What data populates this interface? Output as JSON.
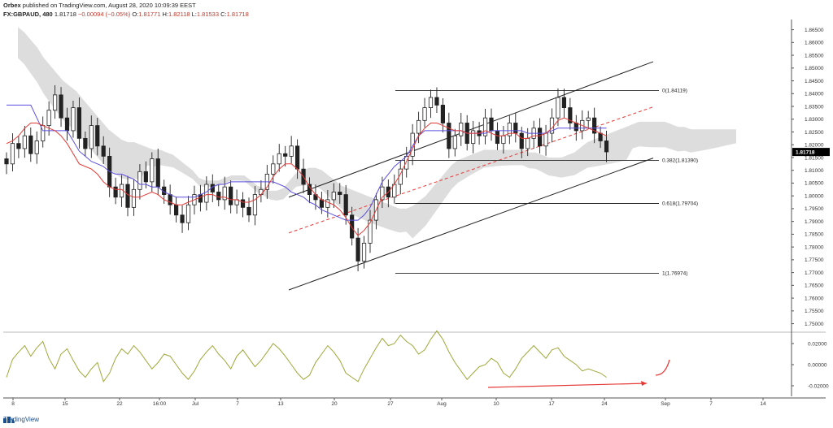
{
  "header": {
    "publisher": "Orbex",
    "published_text": "published on TradingView.com, August 28, 2020 10:09:39 EEST",
    "symbol": "FX:GBPAUD, 480",
    "last": "1.81718",
    "change": "−0.00094 (−0.05%)",
    "open_label": "O:",
    "open": "1.81771",
    "high_label": "H:",
    "high": "1.82118",
    "low_label": "L:",
    "low": "1.81533",
    "close_label": "C:",
    "close": "1.81718"
  },
  "footer": {
    "brand": "TradingView"
  },
  "colors": {
    "up": "#ffffff",
    "down": "#222222",
    "tenkan": "#e53935",
    "kijun": "#5b4fe0",
    "cloud": "#d9d9d9",
    "oscillator": "#9fa83a",
    "annotation": "#e53935",
    "price_tag": "#000000"
  },
  "chart_data": [
    {
      "type": "line",
      "title": "",
      "ylim": [
        1.747,
        1.869
      ],
      "y_ticks": [
        "1.86500",
        "1.86000",
        "1.85500",
        "1.85000",
        "1.84500",
        "1.84000",
        "1.83500",
        "1.83000",
        "1.82500",
        "1.82000",
        "1.81500",
        "1.81000",
        "1.80500",
        "1.80000",
        "1.79500",
        "1.79000",
        "1.78500",
        "1.78000",
        "1.77500",
        "1.77000",
        "1.76500",
        "1.76000",
        "1.75500",
        "1.75000"
      ],
      "x_ticks": [
        "8",
        "15",
        "22",
        "16:00",
        "Jul",
        "7",
        "13",
        "20",
        "27",
        "Aug",
        "10",
        "17",
        "24",
        "Sep",
        "7",
        "14"
      ],
      "last_price_label": "1.81718",
      "fib_levels": [
        {
          "label": "0(1.84119)",
          "value": 1.84119
        },
        {
          "label": "0.382(1.81390)",
          "value": 1.8139
        },
        {
          "label": "0.618(1.79704)",
          "value": 1.79704
        },
        {
          "label": "1(1.76974)",
          "value": 1.76974
        }
      ],
      "channel": {
        "upper": [
          [
            0,
            1.7995
          ],
          [
            100,
            1.8525
          ]
        ],
        "lower": [
          [
            0,
            1.7632
          ],
          [
            100,
            1.8148
          ]
        ],
        "mid": [
          [
            0,
            1.7855
          ],
          [
            100,
            1.8348
          ]
        ]
      },
      "close_series": [
        1.8125,
        1.8205,
        1.8185,
        1.8235,
        1.8165,
        1.8215,
        1.8275,
        1.8335,
        1.8395,
        1.8305,
        1.8255,
        1.8345,
        1.8225,
        1.8185,
        1.8275,
        1.8195,
        1.8155,
        1.8035,
        1.7995,
        1.8045,
        1.7955,
        1.8025,
        1.8095,
        1.8055,
        1.8145,
        1.8035,
        1.8005,
        1.7965,
        1.7925,
        1.7895,
        1.7965,
        1.8005,
        1.7975,
        1.8045,
        1.8015,
        1.7985,
        1.8035,
        1.7965,
        1.7985,
        1.7955,
        1.7925,
        1.8005,
        1.8025,
        1.8085,
        1.8125,
        1.8165,
        1.8155,
        1.8195,
        1.8105,
        1.8045,
        1.8005,
        1.7985,
        1.7955,
        1.7985,
        1.8015,
        1.8005,
        1.7925,
        1.7835,
        1.7745,
        1.7815,
        1.7905,
        1.7985,
        1.8035,
        1.7995,
        1.8045,
        1.8105,
        1.8155,
        1.8245,
        1.8295,
        1.8345,
        1.8385,
        1.8355,
        1.8285,
        1.8185,
        1.8235,
        1.8285,
        1.8205,
        1.8255,
        1.8235,
        1.8305,
        1.8255,
        1.8205,
        1.8235,
        1.8285,
        1.8245,
        1.8185,
        1.8225,
        1.8265,
        1.8195,
        1.8245,
        1.8305,
        1.8385,
        1.8345,
        1.8285,
        1.8255,
        1.8295,
        1.8305,
        1.8245,
        1.8215,
        1.8172
      ],
      "tenkan_series": [
        1.8205,
        1.8215,
        1.8235,
        1.8265,
        1.8285,
        1.8285,
        1.8275,
        1.8265,
        1.8255,
        1.8235,
        1.8205,
        1.8165,
        1.8125,
        1.8115,
        1.8105,
        1.8085,
        1.8055,
        1.8035,
        1.8025,
        1.8025,
        1.8005,
        1.7995,
        1.7995,
        1.8005,
        1.8015,
        1.8005,
        1.7985,
        1.7975,
        1.7965,
        1.7965,
        1.7975,
        1.7985,
        1.7995,
        1.8005,
        1.8005,
        1.7995,
        1.7995,
        1.7985,
        1.7985,
        1.7975,
        1.7975,
        1.7985,
        1.8005,
        1.8035,
        1.8075,
        1.8105,
        1.8125,
        1.8125,
        1.8105,
        1.8075,
        1.8035,
        1.8005,
        1.7985,
        1.7975,
        1.7965,
        1.7945,
        1.7915,
        1.7875,
        1.7845,
        1.7865,
        1.7895,
        1.7945,
        1.7995,
        1.8015,
        1.8045,
        1.8085,
        1.8135,
        1.8185,
        1.8235,
        1.8265,
        1.8285,
        1.8285,
        1.8275,
        1.8265,
        1.8255,
        1.8255,
        1.8245,
        1.8245,
        1.8245,
        1.8255,
        1.8245,
        1.8235,
        1.8235,
        1.8245,
        1.8245,
        1.8225,
        1.8225,
        1.8235,
        1.8235,
        1.8245,
        1.8265,
        1.8295,
        1.8305,
        1.8295,
        1.8285,
        1.8275,
        1.8265,
        1.8255,
        1.8245,
        1.8235
      ],
      "kijun_series": [
        1.8355,
        1.8355,
        1.8355,
        1.8355,
        1.8355,
        1.8305,
        1.8255,
        1.8255,
        1.8255,
        1.8255,
        1.8255,
        1.8215,
        1.8175,
        1.8155,
        1.8135,
        1.8125,
        1.8115,
        1.8095,
        1.8085,
        1.8085,
        1.8075,
        1.8065,
        1.8045,
        1.8045,
        1.8035,
        1.8035,
        1.8015,
        1.8005,
        1.7995,
        1.7995,
        1.7995,
        1.7995,
        1.8005,
        1.8015,
        1.8035,
        1.8045,
        1.8045,
        1.8055,
        1.8055,
        1.8055,
        1.8055,
        1.8055,
        1.8055,
        1.8055,
        1.8055,
        1.8045,
        1.8035,
        1.8015,
        1.8005,
        1.7995,
        1.7975,
        1.7965,
        1.7945,
        1.7935,
        1.7925,
        1.7915,
        1.7905,
        1.7905,
        1.7905,
        1.7925,
        1.7955,
        1.8005,
        1.8055,
        1.8085,
        1.8115,
        1.8135,
        1.8155,
        1.8195,
        1.8235,
        1.8255,
        1.8255,
        1.8255,
        1.8255,
        1.8255,
        1.8255,
        1.8255,
        1.8245,
        1.8245,
        1.8245,
        1.8245,
        1.8255,
        1.8255,
        1.8255,
        1.8255,
        1.8255,
        1.8255,
        1.8245,
        1.8245,
        1.8245,
        1.8245,
        1.8255,
        1.8265,
        1.8265,
        1.8265,
        1.8265,
        1.8265,
        1.8265,
        1.8265,
        1.8265,
        1.8265
      ],
      "oscillator": {
        "ylim": [
          -0.03,
          0.03
        ],
        "y_ticks": [
          "0.02000",
          "0.00000",
          "-0.02000"
        ],
        "values": [
          -0.012,
          0.005,
          0.012,
          0.018,
          0.008,
          0.016,
          0.022,
          0.006,
          -0.004,
          0.01,
          0.015,
          0.004,
          -0.006,
          -0.012,
          -0.004,
          0.002,
          -0.016,
          -0.008,
          0.006,
          0.015,
          0.01,
          0.018,
          0.012,
          0.004,
          -0.004,
          0.002,
          0.01,
          0.008,
          0.0,
          -0.008,
          -0.014,
          -0.006,
          0.005,
          0.012,
          0.018,
          0.01,
          0.004,
          -0.004,
          0.008,
          0.014,
          0.006,
          -0.002,
          0.004,
          0.012,
          0.02,
          0.015,
          0.008,
          0.0,
          -0.008,
          -0.014,
          -0.01,
          0.002,
          0.01,
          0.018,
          0.012,
          0.004,
          -0.008,
          -0.012,
          -0.016,
          -0.004,
          0.006,
          0.016,
          0.025,
          0.018,
          0.02,
          0.028,
          0.022,
          0.018,
          0.01,
          0.014,
          0.024,
          0.032,
          0.024,
          0.012,
          0.002,
          -0.006,
          -0.014,
          -0.008,
          -0.002,
          0.0,
          0.006,
          0.002,
          -0.008,
          -0.012,
          -0.004,
          0.006,
          0.012,
          0.018,
          0.012,
          0.006,
          0.014,
          0.016,
          0.008,
          0.004,
          0.0,
          -0.006,
          -0.004,
          -0.006,
          -0.008,
          -0.012
        ]
      }
    }
  ]
}
